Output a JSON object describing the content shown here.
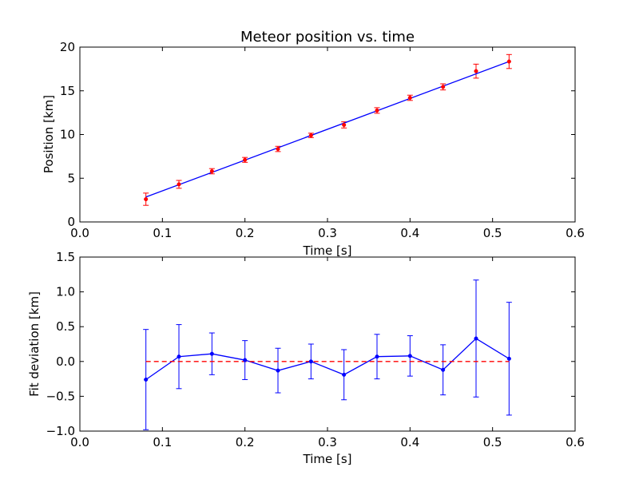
{
  "chart_data": [
    {
      "type": "scatter",
      "title": "Meteor position vs. time",
      "xlabel": "Time [s]",
      "ylabel": "Position [km]",
      "xlim": [
        0.0,
        0.6
      ],
      "ylim": [
        0,
        20
      ],
      "xticks": [
        "0.0",
        "0.1",
        "0.2",
        "0.3",
        "0.4",
        "0.5",
        "0.6"
      ],
      "yticks": [
        "0",
        "5",
        "10",
        "15",
        "20"
      ],
      "grid": false,
      "series": [
        {
          "kind": "errorbar-points",
          "color": "#ff0000",
          "x": [
            0.08,
            0.12,
            0.16,
            0.2,
            0.24,
            0.28,
            0.32,
            0.36,
            0.4,
            0.44,
            0.48,
            0.52
          ],
          "y": [
            2.6,
            4.3,
            5.8,
            7.1,
            8.35,
            9.9,
            11.1,
            12.75,
            14.2,
            15.45,
            17.25,
            18.35
          ],
          "yerr": [
            0.7,
            0.45,
            0.3,
            0.28,
            0.3,
            0.25,
            0.35,
            0.32,
            0.3,
            0.35,
            0.8,
            0.8
          ]
        },
        {
          "kind": "fit-line",
          "color": "#0000ff",
          "x": [
            0.08,
            0.52
          ],
          "y": [
            2.85,
            18.35
          ]
        }
      ]
    },
    {
      "type": "line",
      "xlabel": "Time [s]",
      "ylabel": "Fit deviation [km]",
      "xlim": [
        0.0,
        0.6
      ],
      "ylim": [
        -1.0,
        1.5
      ],
      "xticks": [
        "0.0",
        "0.1",
        "0.2",
        "0.3",
        "0.4",
        "0.5",
        "0.6"
      ],
      "yticks": [
        "−1.0",
        "−0.5",
        "0.0",
        "0.5",
        "1.0",
        "1.5"
      ],
      "grid": false,
      "series": [
        {
          "kind": "errorbar-line",
          "color": "#0000ff",
          "x": [
            0.08,
            0.12,
            0.16,
            0.2,
            0.24,
            0.28,
            0.32,
            0.36,
            0.4,
            0.44,
            0.48,
            0.52
          ],
          "y": [
            -0.26,
            0.07,
            0.11,
            0.02,
            -0.13,
            0.0,
            -0.19,
            0.07,
            0.08,
            -0.12,
            0.33,
            0.04
          ],
          "yerr": [
            0.72,
            0.46,
            0.3,
            0.28,
            0.32,
            0.25,
            0.36,
            0.32,
            0.29,
            0.36,
            0.84,
            0.81
          ]
        },
        {
          "kind": "reference-line",
          "color": "#ff0000",
          "style": "dashed",
          "x": [
            0.08,
            0.52
          ],
          "y": [
            0.0,
            0.0
          ]
        }
      ]
    }
  ]
}
